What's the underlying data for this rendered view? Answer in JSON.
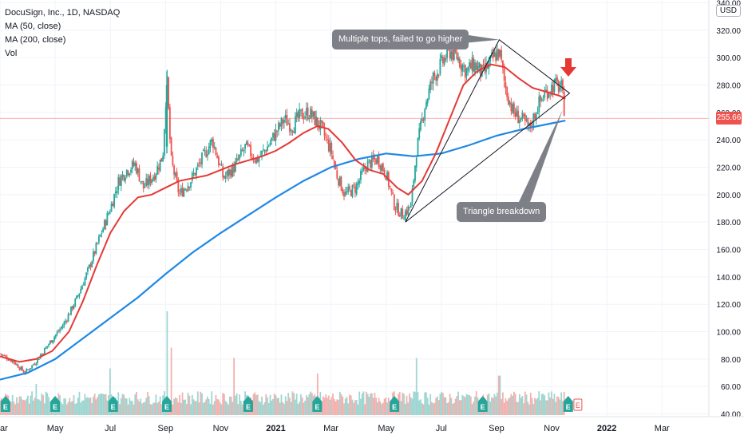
{
  "legend": {
    "symbol": "DocuSign, Inc., 1D, NASDAQ",
    "ma50": "MA (50, close)",
    "ma200": "MA (200, close)",
    "vol": "Vol"
  },
  "currency": "USD",
  "last_price_label": "255.66",
  "colors": {
    "up": "#26a69a",
    "down": "#ef5350",
    "ma50": "#e53935",
    "ma200": "#1e88e5",
    "vol_up": "#9fd6d1",
    "vol_down": "#f3b1af",
    "grid": "#f0f3fa",
    "axis_text": "#131722",
    "callout": "#7d8087",
    "earnings": "#26a69a",
    "arrow": "#e53935"
  },
  "annotations": {
    "top_callout": "Multiple tops, failed to go higher",
    "bottom_callout": "Triangle breakdown"
  },
  "chart_data": {
    "type": "candlestick",
    "x_ticks": [
      "ar",
      "May",
      "Jul",
      "Sep",
      "Nov",
      "2021",
      "Mar",
      "May",
      "Jul",
      "Sep",
      "Nov",
      "2022",
      "Mar"
    ],
    "x_tick_months": [
      2.0,
      4.0,
      6.0,
      8.0,
      10.0,
      12.0,
      14.0,
      16.0,
      18.0,
      20.0,
      22.0,
      24.0,
      26.0
    ],
    "y_ticks": [
      40,
      60,
      80,
      100,
      120,
      140,
      160,
      180,
      200,
      220,
      240,
      260,
      280,
      300,
      320,
      340
    ],
    "y_tick_labels": [
      "40.00",
      "60.00",
      "80.00",
      "100.00",
      "120.00",
      "140.00",
      "160.00",
      "180.00",
      "200.00",
      "220.00",
      "240.00",
      "260.00",
      "280.00",
      "300.00",
      "320.00",
      "340.00"
    ],
    "y_range": [
      38,
      342
    ],
    "x_range_months": [
      2.0,
      27.7
    ],
    "last_price": 255.66,
    "price_path": [
      [
        2.0,
        84
      ],
      [
        2.5,
        78
      ],
      [
        2.9,
        70
      ],
      [
        3.3,
        78
      ],
      [
        3.8,
        92
      ],
      [
        4.3,
        105
      ],
      [
        4.8,
        125
      ],
      [
        5.2,
        145
      ],
      [
        5.6,
        168
      ],
      [
        6.0,
        190
      ],
      [
        6.3,
        210
      ],
      [
        6.6,
        218
      ],
      [
        6.9,
        222
      ],
      [
        7.2,
        205
      ],
      [
        7.6,
        215
      ],
      [
        7.9,
        228
      ],
      [
        8.05,
        285
      ],
      [
        8.2,
        225
      ],
      [
        8.5,
        200
      ],
      [
        8.9,
        210
      ],
      [
        9.3,
        225
      ],
      [
        9.7,
        240
      ],
      [
        10.1,
        212
      ],
      [
        10.5,
        220
      ],
      [
        10.9,
        235
      ],
      [
        11.3,
        225
      ],
      [
        11.7,
        235
      ],
      [
        12.0,
        245
      ],
      [
        12.3,
        255
      ],
      [
        12.6,
        250
      ],
      [
        12.9,
        258
      ],
      [
        13.2,
        260
      ],
      [
        13.6,
        250
      ],
      [
        14.0,
        232
      ],
      [
        14.2,
        215
      ],
      [
        14.5,
        200
      ],
      [
        14.9,
        205
      ],
      [
        15.3,
        222
      ],
      [
        15.7,
        226
      ],
      [
        16.0,
        215
      ],
      [
        16.3,
        192
      ],
      [
        16.6,
        185
      ],
      [
        16.9,
        192
      ],
      [
        17.1,
        232
      ],
      [
        17.4,
        265
      ],
      [
        17.7,
        285
      ],
      [
        18.0,
        295
      ],
      [
        18.3,
        305
      ],
      [
        18.6,
        300
      ],
      [
        18.9,
        290
      ],
      [
        19.2,
        295
      ],
      [
        19.5,
        288
      ],
      [
        19.9,
        300
      ],
      [
        20.1,
        305
      ],
      [
        20.3,
        280
      ],
      [
        20.6,
        260
      ],
      [
        20.9,
        255
      ],
      [
        21.2,
        248
      ],
      [
        21.5,
        265
      ],
      [
        21.8,
        275
      ],
      [
        22.1,
        280
      ],
      [
        22.35,
        278
      ],
      [
        22.5,
        256
      ]
    ],
    "ma50_path": [
      [
        2.0,
        82
      ],
      [
        2.7,
        78
      ],
      [
        3.3,
        80
      ],
      [
        3.9,
        86
      ],
      [
        4.5,
        100
      ],
      [
        5.0,
        122
      ],
      [
        5.5,
        148
      ],
      [
        6.0,
        172
      ],
      [
        6.5,
        188
      ],
      [
        7.0,
        198
      ],
      [
        7.5,
        200
      ],
      [
        8.0,
        205
      ],
      [
        8.5,
        210
      ],
      [
        9.0,
        212
      ],
      [
        9.5,
        214
      ],
      [
        10.0,
        218
      ],
      [
        10.5,
        222
      ],
      [
        11.0,
        225
      ],
      [
        11.5,
        228
      ],
      [
        12.0,
        232
      ],
      [
        12.5,
        238
      ],
      [
        13.0,
        245
      ],
      [
        13.5,
        250
      ],
      [
        13.9,
        248
      ],
      [
        14.4,
        238
      ],
      [
        14.9,
        225
      ],
      [
        15.4,
        218
      ],
      [
        15.9,
        215
      ],
      [
        16.4,
        205
      ],
      [
        16.8,
        200
      ],
      [
        17.3,
        210
      ],
      [
        17.8,
        230
      ],
      [
        18.3,
        255
      ],
      [
        18.8,
        280
      ],
      [
        19.3,
        290
      ],
      [
        19.8,
        295
      ],
      [
        20.3,
        293
      ],
      [
        20.8,
        285
      ],
      [
        21.3,
        278
      ],
      [
        21.8,
        275
      ],
      [
        22.3,
        272
      ],
      [
        22.5,
        270
      ]
    ],
    "ma200_path": [
      [
        2.0,
        65
      ],
      [
        3.0,
        70
      ],
      [
        4.0,
        80
      ],
      [
        5.0,
        95
      ],
      [
        6.0,
        110
      ],
      [
        7.0,
        125
      ],
      [
        8.0,
        142
      ],
      [
        9.0,
        158
      ],
      [
        10.0,
        172
      ],
      [
        11.0,
        185
      ],
      [
        12.0,
        198
      ],
      [
        13.0,
        210
      ],
      [
        14.0,
        220
      ],
      [
        15.0,
        226
      ],
      [
        16.0,
        230
      ],
      [
        17.0,
        228
      ],
      [
        18.0,
        230
      ],
      [
        19.0,
        236
      ],
      [
        20.0,
        243
      ],
      [
        21.0,
        248
      ],
      [
        22.0,
        252
      ],
      [
        22.5,
        254
      ]
    ],
    "volume_spikes": [
      [
        3.3,
        0.3
      ],
      [
        6.0,
        0.45
      ],
      [
        8.05,
        1.0
      ],
      [
        8.2,
        0.65
      ],
      [
        10.5,
        0.55
      ],
      [
        13.5,
        0.4
      ],
      [
        17.1,
        0.55
      ],
      [
        20.1,
        0.38
      ]
    ],
    "triangle": [
      [
        16.7,
        180
      ],
      [
        20.1,
        313
      ],
      [
        22.65,
        274
      ]
    ],
    "earnings_months": [
      2.2,
      4.0,
      6.1,
      8.05,
      11.0,
      13.5,
      16.3,
      19.5,
      22.6
    ],
    "earnings_upcoming_month": 22.95
  }
}
